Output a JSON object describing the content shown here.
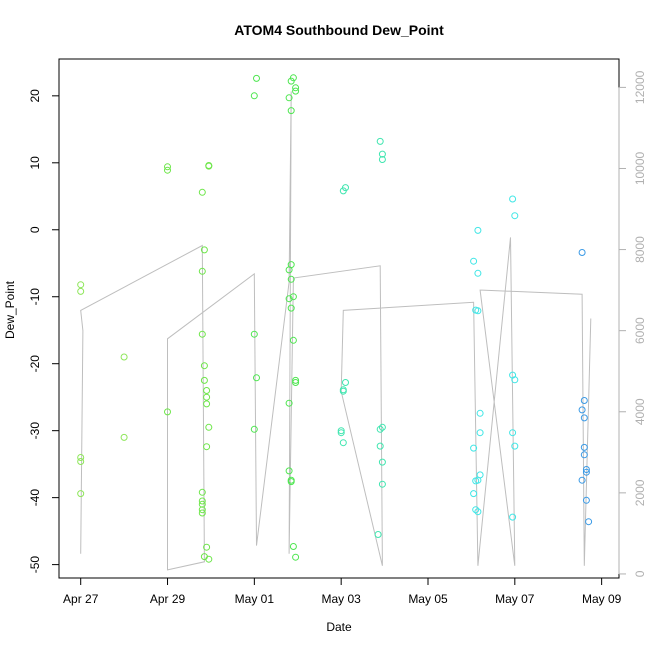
{
  "chart_data": {
    "type": "scatter",
    "title": "ATOM4 Southbound Dew_Point",
    "xlabel": "Date",
    "ylabel": "Dew_Point",
    "x_range": [
      -0.5,
      12.4
    ],
    "y_range": [
      -52,
      25.5
    ],
    "y2_range": [
      -100,
      12700
    ],
    "x_ticks": [
      {
        "value": 0,
        "label": "Apr 27"
      },
      {
        "value": 2,
        "label": "Apr 29"
      },
      {
        "value": 4,
        "label": "May 01"
      },
      {
        "value": 6,
        "label": "May 03"
      },
      {
        "value": 8,
        "label": "May 05"
      },
      {
        "value": 10,
        "label": "May 07"
      },
      {
        "value": 12,
        "label": "May 09"
      }
    ],
    "y_ticks": [
      -50,
      -40,
      -30,
      -20,
      -10,
      0,
      10,
      20
    ],
    "y2_ticks": [
      0,
      2000,
      4000,
      6000,
      8000,
      10000,
      12000
    ],
    "grid": false,
    "colors": {
      "line": "#bebebe",
      "axis": "#000000",
      "axis_right": "#b0b0b0"
    },
    "series": [
      {
        "color": "#8ee65a",
        "points": [
          [
            0.0,
            -8.2
          ],
          [
            0.0,
            -9.2
          ],
          [
            0.0,
            -34
          ],
          [
            0.0,
            -34.6
          ],
          [
            0.0,
            -39.4
          ],
          [
            1.0,
            -19
          ],
          [
            1.0,
            -31
          ]
        ]
      },
      {
        "color": "#6ee64a",
        "points": [
          [
            2.0,
            9.4
          ],
          [
            2.0,
            8.9
          ],
          [
            2.0,
            -27.2
          ],
          [
            2.8,
            5.6
          ],
          [
            2.8,
            -6.2
          ],
          [
            2.8,
            -15.6
          ],
          [
            2.85,
            -3
          ],
          [
            2.85,
            -20.3
          ],
          [
            2.85,
            -22.5
          ],
          [
            2.9,
            -24
          ],
          [
            2.9,
            -25
          ],
          [
            2.9,
            -26
          ],
          [
            2.95,
            -29.5
          ],
          [
            2.9,
            -32.4
          ],
          [
            2.8,
            -39.2
          ],
          [
            2.8,
            -40.5
          ],
          [
            2.8,
            -41
          ],
          [
            2.8,
            -41.8
          ],
          [
            2.8,
            -42.3
          ],
          [
            2.9,
            -47.4
          ],
          [
            2.85,
            -48.8
          ],
          [
            2.95,
            -49.2
          ],
          [
            2.95,
            9.6
          ],
          [
            2.95,
            9.5
          ]
        ]
      },
      {
        "color": "#4ee650",
        "points": [
          [
            4.0,
            20
          ],
          [
            4.05,
            22.6
          ],
          [
            4.0,
            -15.6
          ],
          [
            4.05,
            -22.1
          ],
          [
            4.0,
            -29.8
          ],
          [
            4.85,
            22.2
          ],
          [
            4.9,
            22.7
          ],
          [
            4.8,
            19.7
          ],
          [
            4.85,
            17.8
          ],
          [
            4.95,
            21.2
          ],
          [
            4.95,
            20.7
          ],
          [
            4.8,
            -6
          ],
          [
            4.85,
            -5.2
          ],
          [
            4.85,
            -7.4
          ],
          [
            4.8,
            -10.3
          ],
          [
            4.9,
            -10
          ],
          [
            4.85,
            -11.7
          ],
          [
            4.9,
            -16.5
          ],
          [
            4.95,
            -22.5
          ],
          [
            4.95,
            -22.8
          ],
          [
            4.8,
            -25.9
          ],
          [
            4.8,
            -36
          ],
          [
            4.85,
            -37.4
          ],
          [
            4.85,
            -37.6
          ],
          [
            4.9,
            -47.3
          ],
          [
            4.95,
            -48.9
          ]
        ]
      },
      {
        "color": "#40e6b0",
        "points": [
          [
            6.05,
            5.8
          ],
          [
            6.1,
            6.3
          ],
          [
            6.05,
            -23.9
          ],
          [
            6.1,
            -22.8
          ],
          [
            6.05,
            -24.1
          ],
          [
            6.0,
            -30
          ],
          [
            6.0,
            -30.3
          ],
          [
            6.05,
            -31.8
          ],
          [
            6.9,
            13.2
          ],
          [
            6.95,
            11.3
          ],
          [
            6.95,
            10.5
          ],
          [
            6.9,
            -29.8
          ],
          [
            6.95,
            -29.5
          ],
          [
            6.9,
            -32.3
          ],
          [
            6.95,
            -34.7
          ],
          [
            6.95,
            -38
          ],
          [
            6.85,
            -45.5
          ]
        ]
      },
      {
        "color": "#40e6e6",
        "points": [
          [
            9.05,
            -4.7
          ],
          [
            9.15,
            -0.1
          ],
          [
            9.15,
            -6.5
          ],
          [
            9.1,
            -12
          ],
          [
            9.15,
            -12.1
          ],
          [
            9.2,
            -27.4
          ],
          [
            9.2,
            -30.3
          ],
          [
            9.05,
            -32.6
          ],
          [
            9.2,
            -36.6
          ],
          [
            9.1,
            -37.5
          ],
          [
            9.15,
            -37.4
          ],
          [
            9.05,
            -39.4
          ],
          [
            9.1,
            -41.8
          ],
          [
            9.15,
            -42.1
          ],
          [
            9.95,
            4.6
          ],
          [
            10.0,
            2.1
          ],
          [
            9.95,
            -21.7
          ],
          [
            10.0,
            -22.4
          ],
          [
            9.95,
            -30.3
          ],
          [
            10.0,
            -32.3
          ],
          [
            9.95,
            -42.9
          ]
        ]
      },
      {
        "color": "#3a9ae6",
        "points": [
          [
            11.55,
            -3.4
          ],
          [
            11.6,
            -25.5
          ],
          [
            11.55,
            -26.9
          ],
          [
            11.6,
            -28.1
          ],
          [
            11.6,
            -32.5
          ],
          [
            11.6,
            -33.6
          ],
          [
            11.65,
            -35.8
          ],
          [
            11.65,
            -36.2
          ],
          [
            11.55,
            -37.4
          ],
          [
            11.65,
            -40.4
          ],
          [
            11.7,
            -43.6
          ]
        ]
      }
    ],
    "secondary_line": {
      "name": "",
      "points": [
        [
          0.0,
          500
        ],
        [
          0.05,
          6000
        ],
        [
          0.0,
          6500
        ],
        [
          2.8,
          8100
        ],
        [
          2.85,
          300
        ],
        [
          2.0,
          100
        ],
        [
          2.0,
          5800
        ],
        [
          4.0,
          7400
        ],
        [
          4.05,
          700
        ],
        [
          4.8,
          7200
        ],
        [
          4.85,
          11900
        ],
        [
          4.8,
          500
        ],
        [
          4.9,
          7300
        ],
        [
          6.9,
          7600
        ],
        [
          6.95,
          200
        ],
        [
          6.0,
          4500
        ],
        [
          6.05,
          6500
        ],
        [
          9.05,
          6700
        ],
        [
          9.15,
          200
        ],
        [
          9.9,
          8300
        ],
        [
          10.0,
          200
        ],
        [
          9.2,
          7000
        ],
        [
          9.25,
          7000
        ],
        [
          11.55,
          6900
        ],
        [
          11.6,
          200
        ],
        [
          11.75,
          6300
        ]
      ]
    }
  }
}
